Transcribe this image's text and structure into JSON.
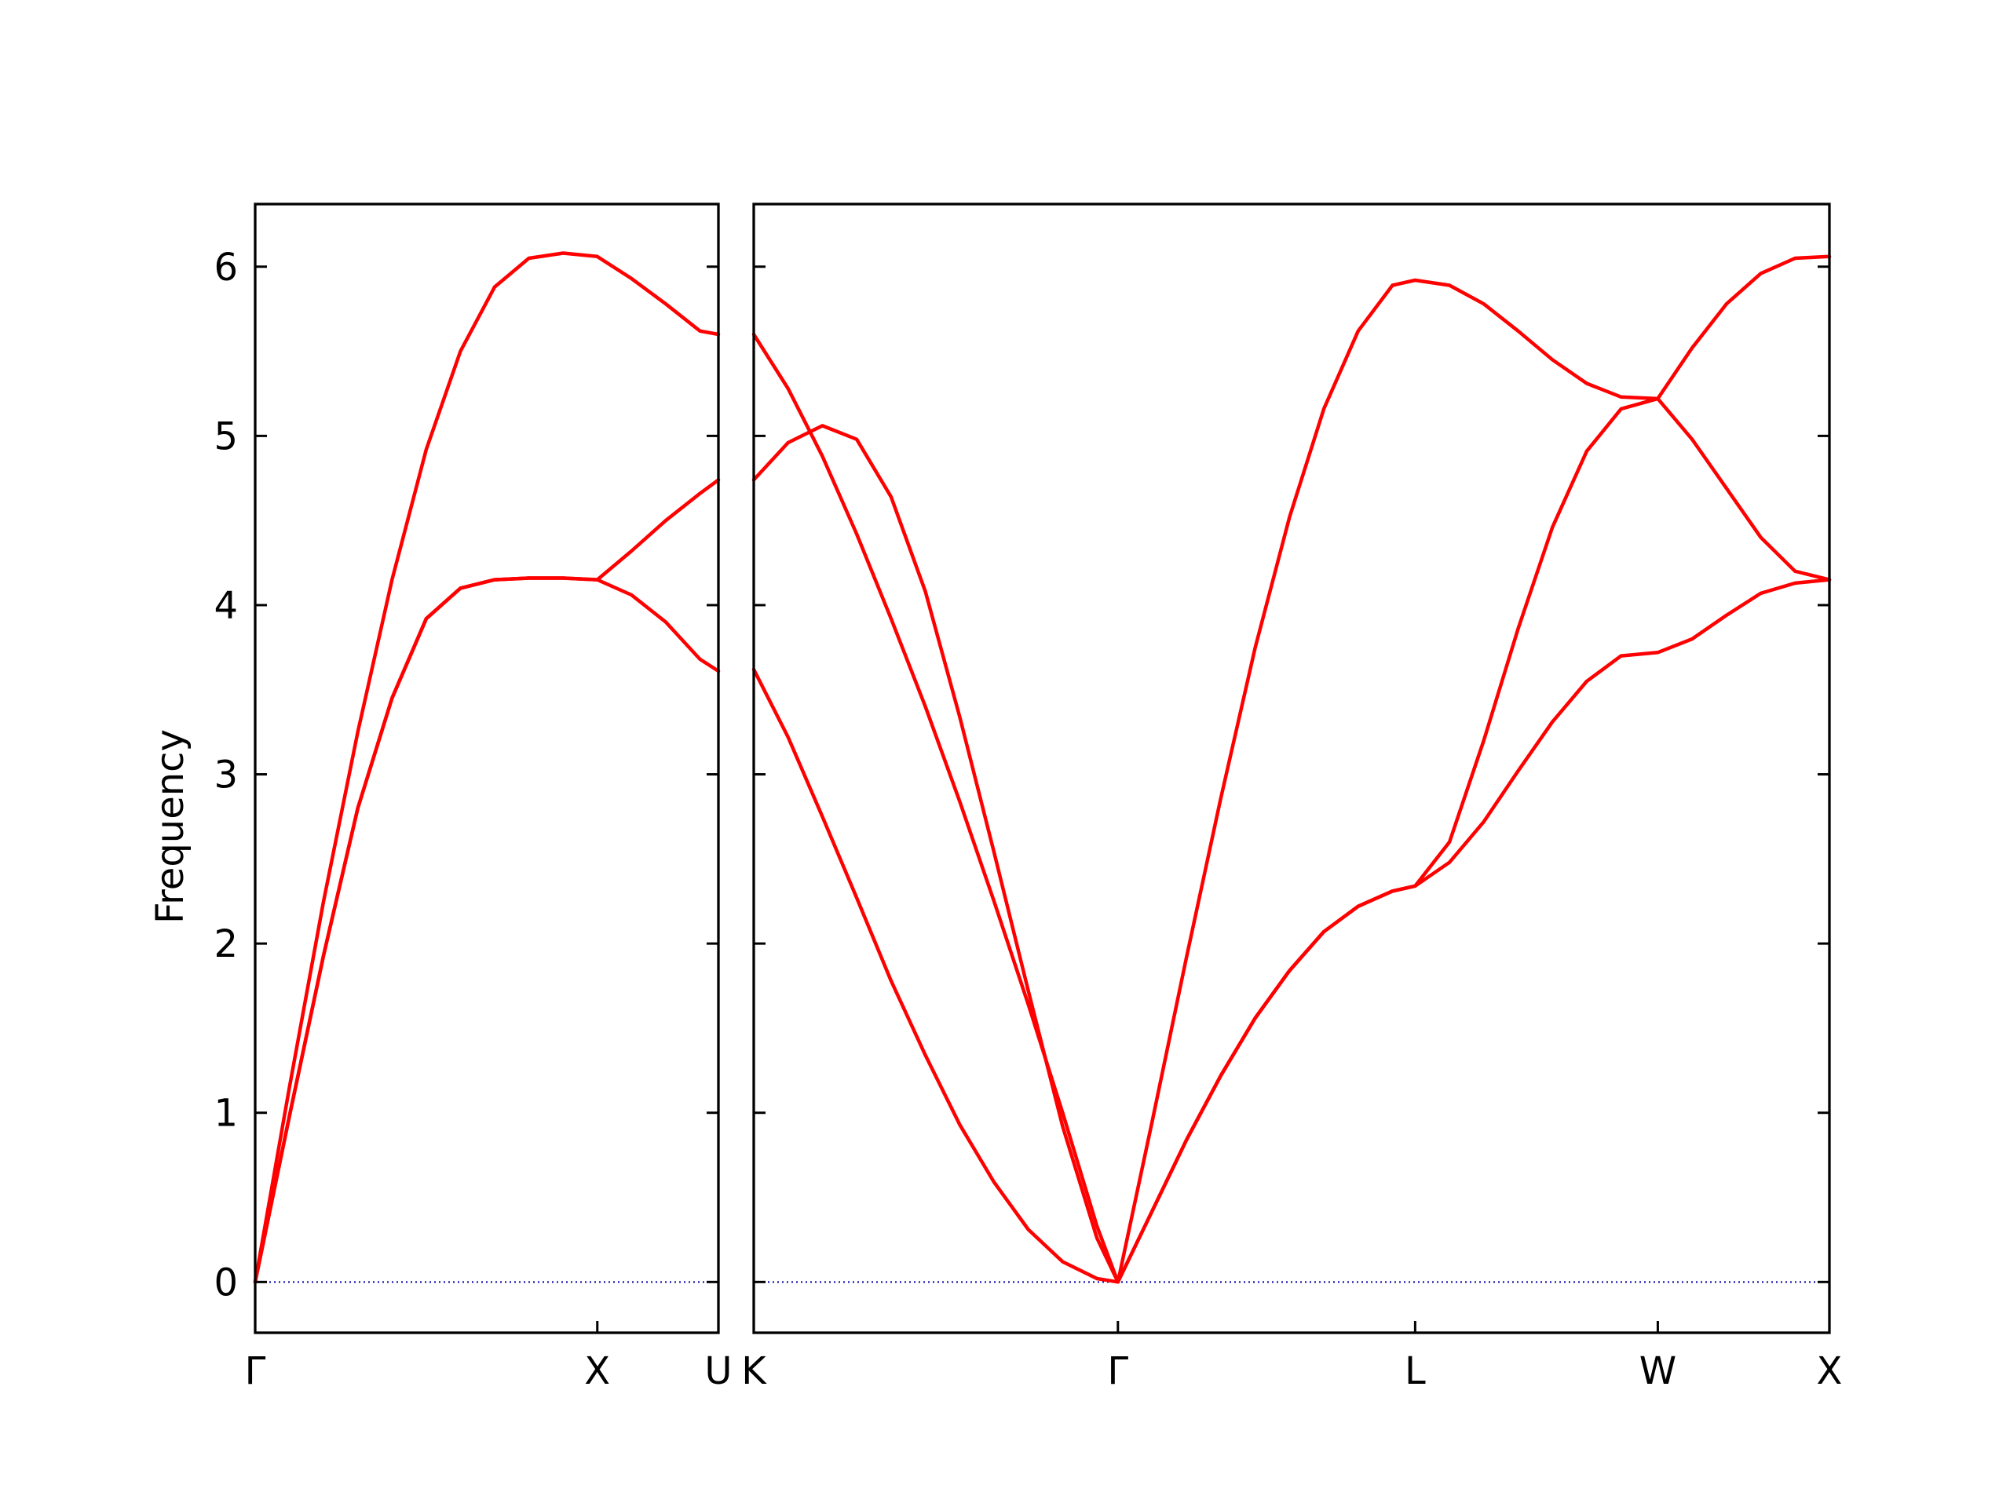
{
  "chart_data": {
    "type": "line",
    "ylabel": "Frequency",
    "ylim": [
      -0.3,
      6.37
    ],
    "y_ticks": [
      0,
      1,
      2,
      3,
      4,
      5,
      6
    ],
    "colors": {
      "band": "#ff0000",
      "zero_line": "#0000aa"
    },
    "panels": [
      {
        "x_ticks": [
          {
            "x": 0.0,
            "label": "Γ"
          },
          {
            "x": 1.0,
            "label": "X"
          },
          {
            "x": 1.354,
            "label": "U"
          }
        ],
        "xlim": [
          0.0,
          1.354
        ],
        "series": [
          {
            "x": [
              0,
              0.1,
              0.2,
              0.3,
              0.4,
              0.5,
              0.6,
              0.7,
              0.8,
              0.9,
              1.0,
              1.1,
              1.2,
              1.3,
              1.354
            ],
            "values": [
              0,
              0.98,
              1.93,
              2.8,
              3.45,
              3.92,
              4.1,
              4.15,
              4.16,
              4.16,
              4.15,
              4.32,
              4.5,
              4.66,
              4.74
            ]
          },
          {
            "x": [
              0,
              0.1,
              0.2,
              0.3,
              0.4,
              0.5,
              0.6,
              0.7,
              0.8,
              0.9,
              1.0,
              1.1,
              1.2,
              1.3,
              1.354
            ],
            "values": [
              0,
              1.15,
              2.25,
              3.25,
              4.15,
              4.92,
              5.5,
              5.88,
              6.05,
              6.08,
              6.06,
              5.93,
              5.78,
              5.62,
              5.6
            ]
          },
          {
            "x": [
              0,
              0.1,
              0.2,
              0.3,
              0.4,
              0.5,
              0.6,
              0.7,
              0.8,
              0.9,
              1.0,
              1.1,
              1.2,
              1.3,
              1.354
            ],
            "values": [
              0,
              0.98,
              1.93,
              2.8,
              3.45,
              3.92,
              4.1,
              4.15,
              4.16,
              4.16,
              4.15,
              4.06,
              3.9,
              3.68,
              3.61
            ]
          }
        ]
      },
      {
        "x_ticks": [
          {
            "x": 0.0,
            "label": "K"
          },
          {
            "x": 1.061,
            "label": "Γ"
          },
          {
            "x": 1.927,
            "label": "L"
          },
          {
            "x": 2.634,
            "label": "W"
          },
          {
            "x": 3.134,
            "label": "X"
          }
        ],
        "xlim": [
          0.0,
          3.134
        ],
        "series": [
          {
            "x": [
              0,
              0.1,
              0.2,
              0.3,
              0.4,
              0.5,
              0.6,
              0.7,
              0.8,
              0.9,
              1.0,
              1.061,
              1.161,
              1.261,
              1.361,
              1.461,
              1.561,
              1.661,
              1.761,
              1.861,
              1.927,
              2.027,
              2.127,
              2.227,
              2.327,
              2.427,
              2.527,
              2.634,
              2.734,
              2.834,
              2.934,
              3.034,
              3.134
            ],
            "values": [
              3.62,
              3.22,
              2.75,
              2.27,
              1.78,
              1.34,
              0.93,
              0.59,
              0.31,
              0.12,
              0.02,
              0.0,
              0.42,
              0.84,
              1.22,
              1.56,
              1.84,
              2.07,
              2.22,
              2.31,
              2.34,
              2.48,
              2.72,
              3.02,
              3.31,
              3.55,
              3.7,
              3.72,
              3.8,
              3.94,
              4.07,
              4.13,
              4.15
            ]
          },
          {
            "x": [
              0,
              0.1,
              0.2,
              0.3,
              0.4,
              0.5,
              0.6,
              0.7,
              0.8,
              0.9,
              1.0,
              1.061,
              1.161,
              1.261,
              1.361,
              1.461,
              1.561,
              1.661,
              1.761,
              1.861,
              1.927,
              2.027,
              2.127,
              2.227,
              2.327,
              2.427,
              2.527,
              2.634,
              2.734,
              2.834,
              2.934,
              3.034,
              3.134
            ],
            "values": [
              5.6,
              5.28,
              4.88,
              4.42,
              3.92,
              3.4,
              2.84,
              2.25,
              1.64,
              1.0,
              0.33,
              0.0,
              0.42,
              0.84,
              1.22,
              1.56,
              1.84,
              2.07,
              2.22,
              2.31,
              2.34,
              2.6,
              3.2,
              3.86,
              4.46,
              4.91,
              5.16,
              5.22,
              4.98,
              4.69,
              4.4,
              4.2,
              4.15
            ]
          },
          {
            "x": [
              0,
              0.1,
              0.2,
              0.3,
              0.4,
              0.5,
              0.6,
              0.7,
              0.8,
              0.9,
              1.0,
              1.061,
              1.161,
              1.261,
              1.361,
              1.461,
              1.561,
              1.661,
              1.761,
              1.861,
              1.927,
              2.027,
              2.127,
              2.227,
              2.327,
              2.427,
              2.527,
              2.634,
              2.734,
              2.834,
              2.934,
              3.034,
              3.134
            ],
            "values": [
              4.74,
              4.96,
              5.06,
              4.98,
              4.64,
              4.08,
              3.34,
              2.54,
              1.72,
              0.92,
              0.26,
              0.0,
              0.95,
              1.92,
              2.86,
              3.75,
              4.52,
              5.16,
              5.62,
              5.89,
              5.92,
              5.89,
              5.78,
              5.62,
              5.45,
              5.31,
              5.23,
              5.22,
              5.52,
              5.78,
              5.96,
              6.05,
              6.06
            ]
          }
        ]
      }
    ]
  }
}
